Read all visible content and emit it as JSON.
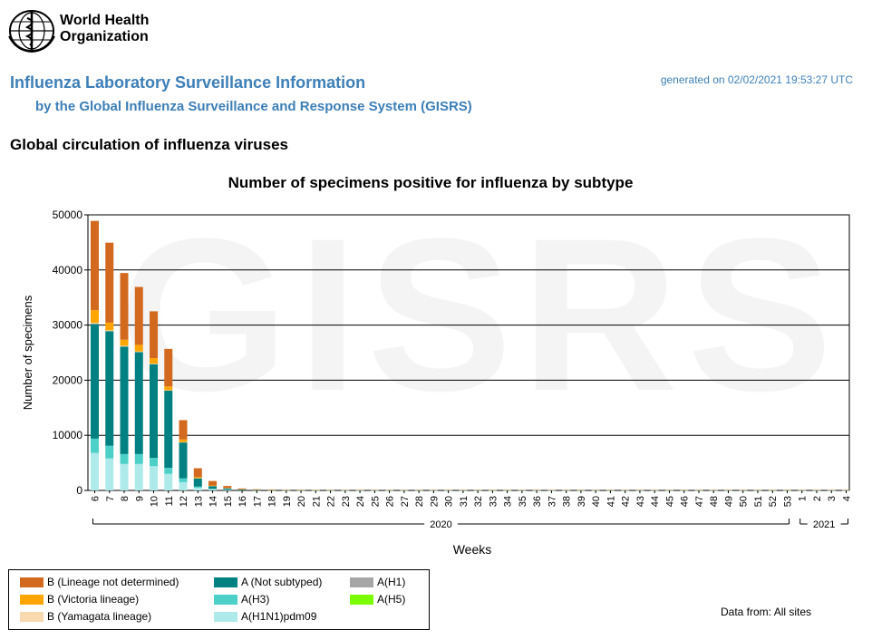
{
  "header": {
    "logo_line1": "World Health",
    "logo_line2": "Organization",
    "title": "Influenza Laboratory Surveillance Information",
    "subtitle": "by the Global Influenza Surveillance and Response System (GISRS)",
    "generated": "generated on 02/02/2021 19:53:27 UTC",
    "section": "Global circulation of influenza viruses"
  },
  "footer": {
    "data_from": "Data from: All sites"
  },
  "watermark": "GISRS",
  "chart_data": {
    "type": "bar",
    "stacked": true,
    "title": "Number of specimens positive for influenza by subtype",
    "xlabel": "Weeks",
    "ylabel": "Number of specimens",
    "ylim": [
      0,
      50000
    ],
    "yticks": [
      0,
      10000,
      20000,
      30000,
      40000,
      50000
    ],
    "grid": true,
    "legend_position": "bottom-left",
    "year_groups": [
      {
        "label": "2020",
        "first": "6",
        "last": "53"
      },
      {
        "label": "2021",
        "first": "1",
        "last": "4"
      }
    ],
    "categories": [
      "6",
      "7",
      "8",
      "9",
      "10",
      "11",
      "12",
      "13",
      "14",
      "15",
      "16",
      "17",
      "18",
      "19",
      "20",
      "21",
      "22",
      "23",
      "24",
      "25",
      "26",
      "27",
      "28",
      "29",
      "30",
      "31",
      "32",
      "33",
      "34",
      "35",
      "36",
      "37",
      "38",
      "39",
      "40",
      "41",
      "42",
      "43",
      "44",
      "45",
      "46",
      "47",
      "48",
      "49",
      "50",
      "51",
      "52",
      "53",
      "1",
      "2",
      "3",
      "4"
    ],
    "series": [
      {
        "name": "A(H1N1)pdm09",
        "color": "#aeeaea",
        "values": [
          6800,
          5800,
          4800,
          4800,
          4400,
          3000,
          1500,
          500,
          220,
          100,
          45,
          25,
          15,
          10,
          8,
          6,
          5,
          5,
          5,
          5,
          5,
          5,
          5,
          5,
          5,
          5,
          5,
          5,
          5,
          5,
          5,
          5,
          5,
          5,
          5,
          5,
          5,
          5,
          5,
          5,
          5,
          5,
          5,
          5,
          5,
          5,
          5,
          5,
          5,
          5,
          5,
          5
        ]
      },
      {
        "name": "A(H3)",
        "color": "#4dd0c8",
        "values": [
          2600,
          2300,
          1800,
          1800,
          1500,
          1100,
          700,
          200,
          80,
          40,
          20,
          10,
          8,
          5,
          4,
          3,
          3,
          3,
          3,
          3,
          3,
          3,
          3,
          3,
          3,
          3,
          3,
          3,
          3,
          3,
          3,
          3,
          3,
          3,
          3,
          3,
          3,
          3,
          3,
          3,
          3,
          3,
          3,
          3,
          3,
          3,
          3,
          3,
          3,
          3,
          3,
          3
        ]
      },
      {
        "name": "A(H5)",
        "color": "#7cfc00",
        "values": [
          0,
          0,
          0,
          0,
          0,
          0,
          0,
          0,
          0,
          0,
          0,
          0,
          0,
          0,
          0,
          0,
          0,
          0,
          0,
          0,
          0,
          0,
          0,
          0,
          0,
          0,
          0,
          0,
          0,
          0,
          0,
          0,
          0,
          0,
          0,
          0,
          0,
          0,
          0,
          0,
          0,
          0,
          0,
          0,
          0,
          0,
          0,
          0,
          0,
          0,
          0,
          0
        ]
      },
      {
        "name": "A(H1)",
        "color": "#a6a6a6",
        "values": [
          0,
          0,
          0,
          0,
          0,
          0,
          0,
          0,
          0,
          0,
          0,
          0,
          0,
          0,
          0,
          0,
          0,
          0,
          0,
          0,
          0,
          0,
          0,
          0,
          0,
          0,
          0,
          0,
          0,
          0,
          0,
          0,
          0,
          0,
          0,
          0,
          0,
          0,
          0,
          0,
          0,
          0,
          0,
          0,
          0,
          0,
          0,
          0,
          0,
          0,
          0,
          0
        ]
      },
      {
        "name": "A (Not subtyped)",
        "color": "#008080",
        "values": [
          20800,
          20800,
          19500,
          18500,
          17000,
          14000,
          6500,
          1500,
          500,
          250,
          100,
          60,
          40,
          30,
          25,
          20,
          20,
          20,
          20,
          20,
          20,
          20,
          20,
          20,
          20,
          20,
          20,
          20,
          20,
          20,
          20,
          20,
          20,
          20,
          20,
          20,
          20,
          20,
          20,
          20,
          20,
          20,
          20,
          20,
          20,
          20,
          20,
          20,
          20,
          20,
          20,
          20
        ]
      },
      {
        "name": "B (Yamagata lineage)",
        "color": "#f9d9b0",
        "values": [
          200,
          150,
          150,
          120,
          100,
          80,
          50,
          20,
          10,
          5,
          0,
          0,
          0,
          0,
          0,
          0,
          0,
          0,
          0,
          0,
          0,
          0,
          0,
          0,
          0,
          0,
          0,
          0,
          0,
          0,
          0,
          0,
          0,
          0,
          0,
          0,
          0,
          0,
          0,
          0,
          0,
          0,
          0,
          0,
          0,
          0,
          0,
          0,
          0,
          0,
          0,
          0
        ]
      },
      {
        "name": "B (Victoria lineage)",
        "color": "#ffa500",
        "values": [
          2300,
          1400,
          1100,
          1200,
          1000,
          700,
          500,
          200,
          100,
          60,
          40,
          30,
          20,
          20,
          20,
          20,
          20,
          20,
          20,
          20,
          20,
          20,
          20,
          20,
          20,
          20,
          20,
          20,
          20,
          20,
          20,
          20,
          20,
          20,
          20,
          20,
          20,
          20,
          20,
          20,
          20,
          20,
          20,
          20,
          20,
          20,
          20,
          20,
          20,
          20,
          20,
          20
        ]
      },
      {
        "name": "B (Lineage not determined)",
        "color": "#d2691e",
        "values": [
          16200,
          14500,
          12100,
          10500,
          8500,
          6800,
          3500,
          1600,
          800,
          350,
          150,
          80,
          60,
          50,
          45,
          40,
          40,
          40,
          40,
          40,
          40,
          40,
          40,
          40,
          40,
          40,
          40,
          40,
          40,
          40,
          40,
          40,
          40,
          40,
          40,
          40,
          40,
          40,
          40,
          40,
          40,
          40,
          40,
          40,
          40,
          40,
          40,
          40,
          40,
          40,
          40,
          40
        ]
      }
    ]
  },
  "legend_order": [
    "B (Lineage not determined)",
    "A (Not subtyped)",
    "A(H1)",
    "B (Victoria lineage)",
    "A(H3)",
    "A(H5)",
    "B (Yamagata lineage)",
    "A(H1N1)pdm09"
  ]
}
